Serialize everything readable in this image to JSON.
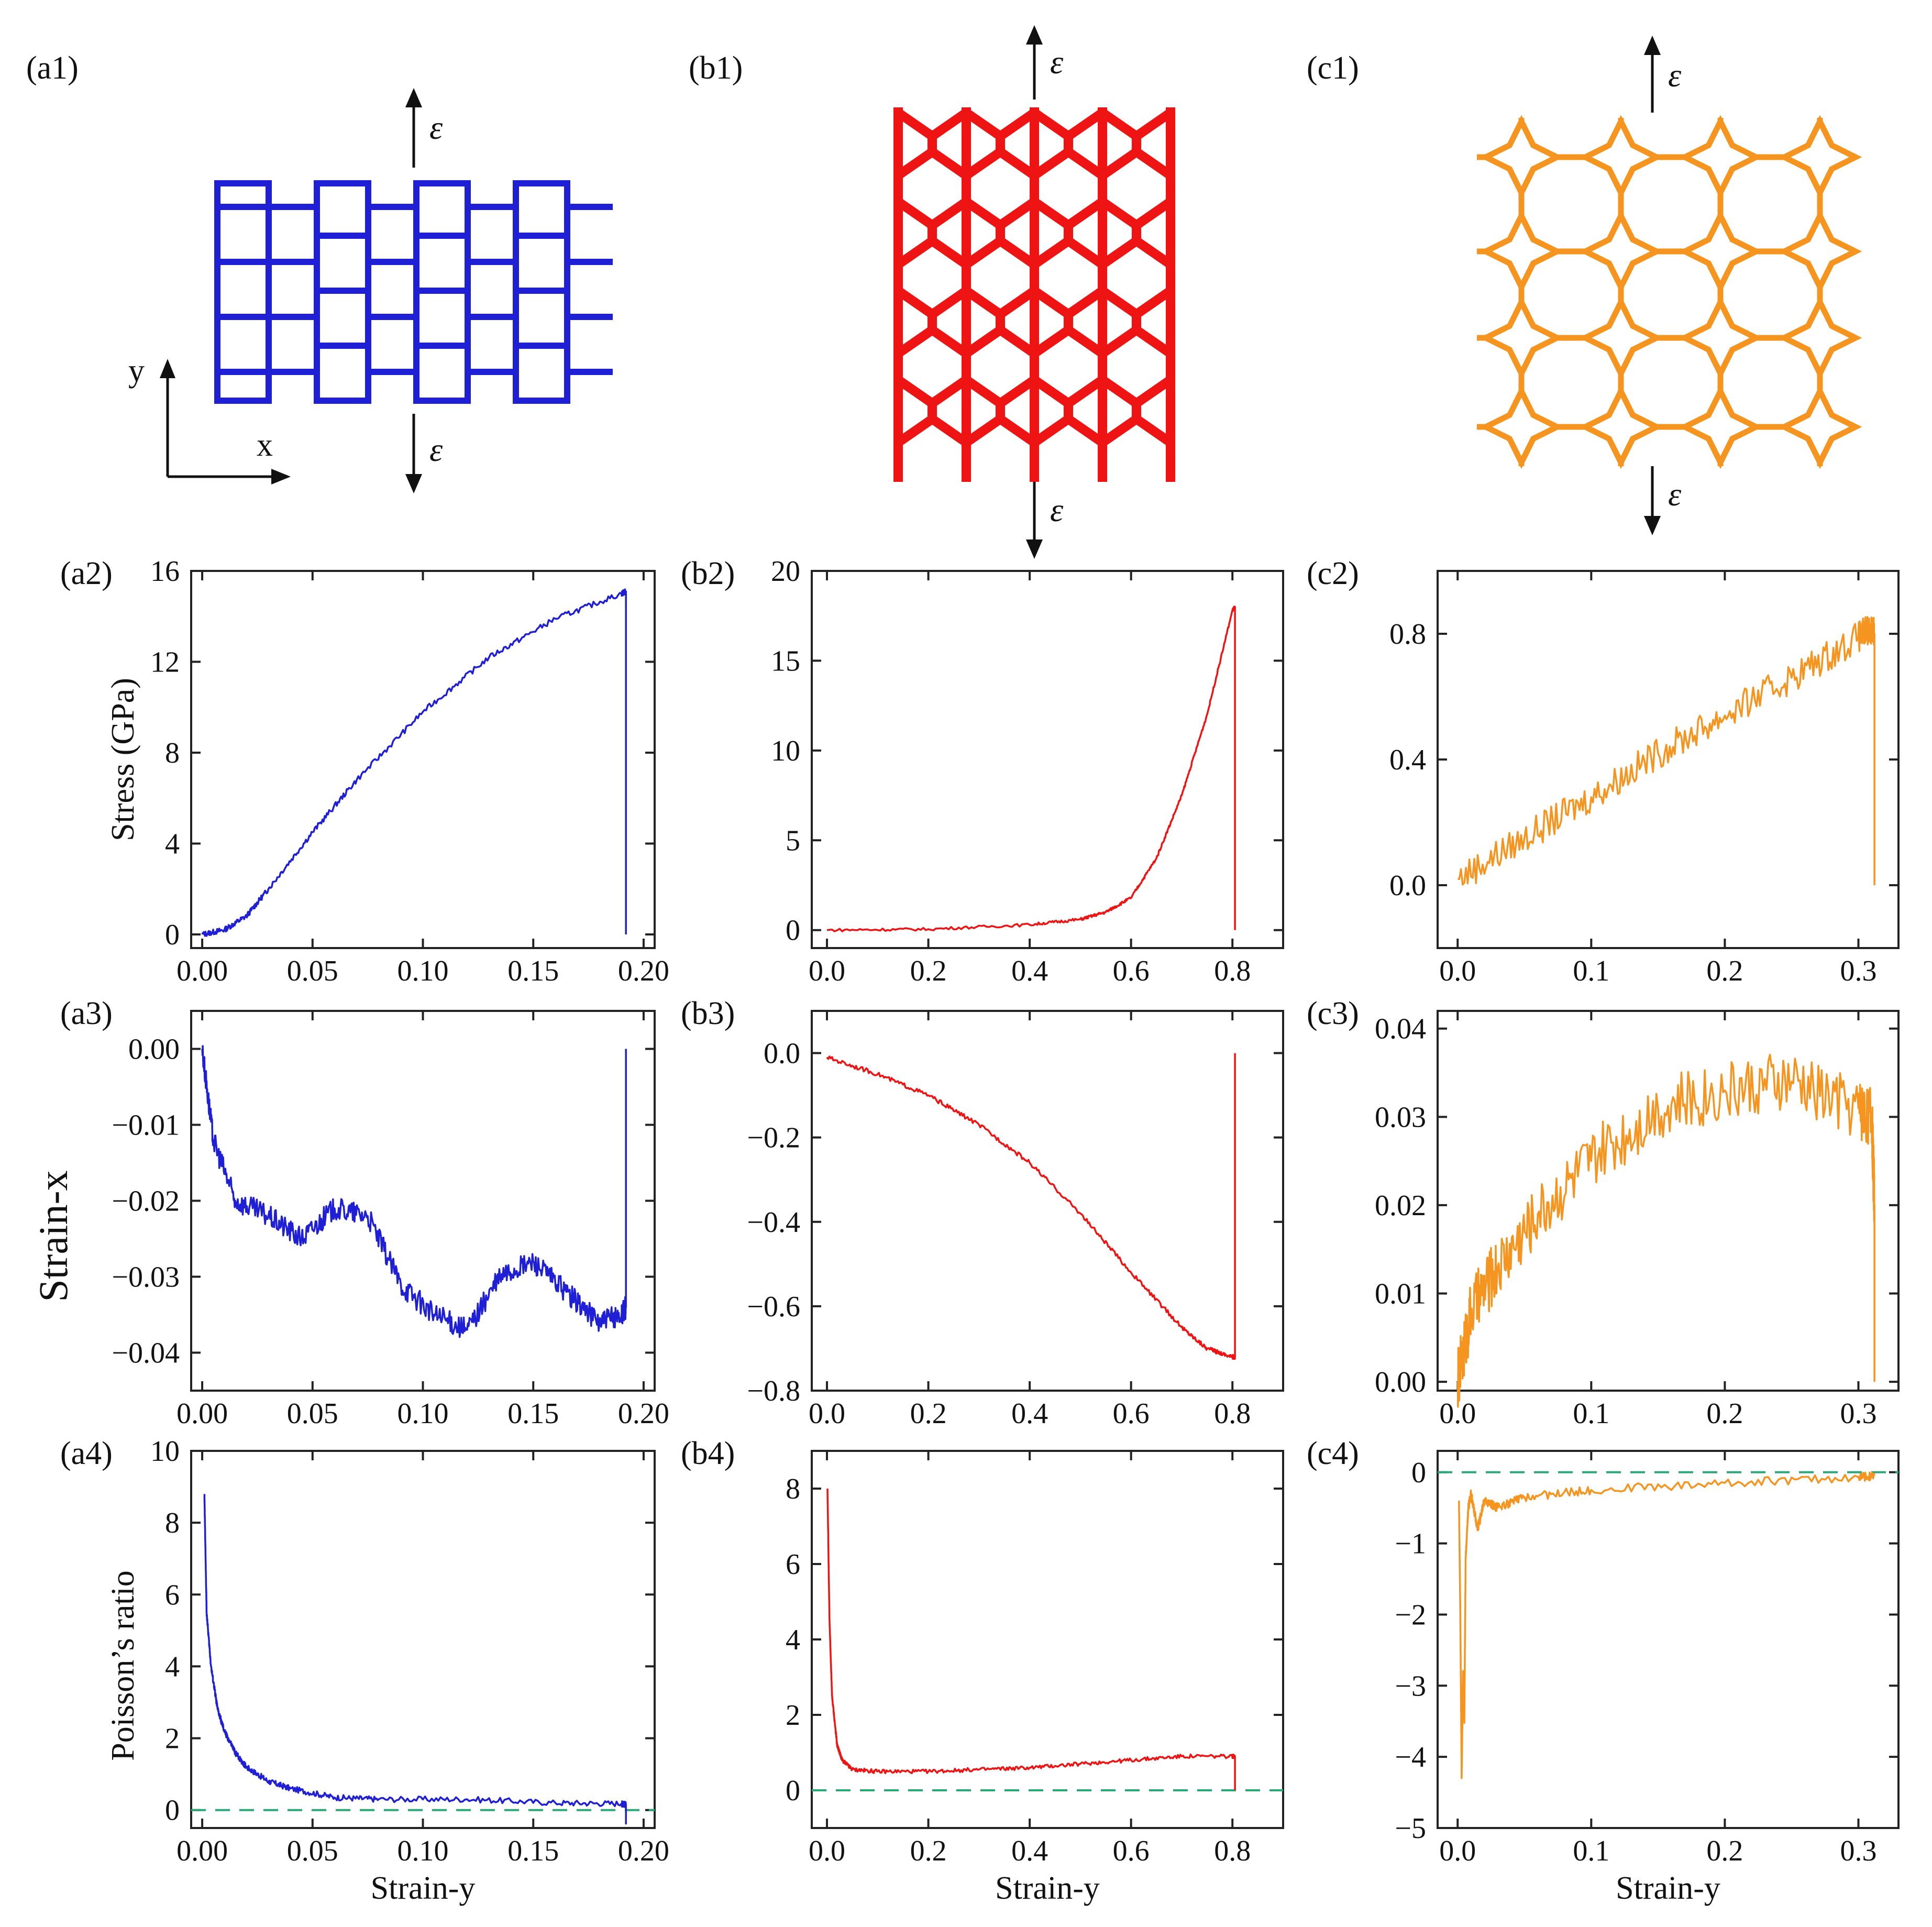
{
  "colors": {
    "a": "#1f1fd6",
    "b": "#ee1414",
    "c": "#f5941e",
    "reference": "#2aa876",
    "axis": "#222222"
  },
  "schematics": [
    {
      "label": "(a1)",
      "structure": "rectangular-lattice",
      "strain_symbol": "ε",
      "axis_x": "x",
      "axis_y": "y"
    },
    {
      "label": "(b1)",
      "structure": "re-entrant-lattice",
      "strain_symbol": "ε"
    },
    {
      "label": "(c1)",
      "structure": "star-lattice",
      "strain_symbol": "ε"
    }
  ],
  "row_titles": {
    "stress": "Stress (GPa)",
    "strain_x": "Strain-x",
    "poisson": "Poisson’s ratio"
  },
  "chart_data": [
    {
      "id": "a2",
      "label": "(a2)",
      "type": "line",
      "series_color": "a",
      "ylabel": "Stress (GPa)",
      "xlabel": "",
      "xlim": [
        -0.005,
        0.205
      ],
      "ylim": [
        -0.6,
        16
      ],
      "xticks": [
        0,
        0.05,
        0.1,
        0.15,
        0.2
      ],
      "xtick_labels": [
        "0.00",
        "0.05",
        "0.10",
        "0.15",
        "0.20"
      ],
      "yticks": [
        0,
        4,
        8,
        12,
        16
      ],
      "ytick_labels": [
        "0",
        "4",
        "8",
        "12",
        "16"
      ],
      "x": [
        0,
        0.01,
        0.02,
        0.03,
        0.05,
        0.07,
        0.1,
        0.13,
        0.16,
        0.19,
        0.192,
        0.192
      ],
      "y": [
        0,
        0.2,
        0.8,
        2.0,
        4.5,
        6.8,
        9.8,
        12.2,
        13.9,
        15.0,
        15.1,
        0
      ],
      "noise": 0.12
    },
    {
      "id": "b2",
      "label": "(b2)",
      "type": "line",
      "series_color": "b",
      "ylabel": "",
      "xlabel": "",
      "xlim": [
        -0.03,
        0.9
      ],
      "ylim": [
        -1,
        20
      ],
      "xticks": [
        0,
        0.2,
        0.4,
        0.6,
        0.8
      ],
      "xtick_labels": [
        "0.0",
        "0.2",
        "0.4",
        "0.6",
        "0.8"
      ],
      "yticks": [
        0,
        5,
        10,
        15,
        20
      ],
      "ytick_labels": [
        "0",
        "5",
        "10",
        "15",
        "20"
      ],
      "x": [
        0,
        0.2,
        0.4,
        0.5,
        0.55,
        0.6,
        0.65,
        0.7,
        0.75,
        0.8,
        0.805,
        0.805
      ],
      "y": [
        0,
        0.05,
        0.3,
        0.6,
        1.0,
        1.8,
        4.0,
        7.5,
        12.0,
        17.8,
        18.0,
        0
      ],
      "noise": 0.08
    },
    {
      "id": "c2",
      "label": "(c2)",
      "type": "line",
      "series_color": "c",
      "ylabel": "",
      "xlabel": "",
      "xlim": [
        -0.015,
        0.33
      ],
      "ylim": [
        -0.2,
        1.0
      ],
      "xticks": [
        0,
        0.1,
        0.2,
        0.3
      ],
      "xtick_labels": [
        "0.0",
        "0.1",
        "0.2",
        "0.3"
      ],
      "yticks": [
        0,
        0.4,
        0.8
      ],
      "ytick_labels": [
        "0.0",
        "0.4",
        "0.8"
      ],
      "x": [
        0,
        0.05,
        0.1,
        0.15,
        0.2,
        0.25,
        0.3,
        0.31,
        0.312,
        0.312
      ],
      "y": [
        0.02,
        0.15,
        0.28,
        0.42,
        0.54,
        0.66,
        0.79,
        0.82,
        0.8,
        0
      ],
      "noise": 0.05
    },
    {
      "id": "a3",
      "label": "(a3)",
      "type": "line",
      "series_color": "a",
      "ylabel": "Strain-x",
      "xlabel": "",
      "xlim": [
        -0.005,
        0.205
      ],
      "ylim": [
        -0.045,
        0.005
      ],
      "xticks": [
        0,
        0.05,
        0.1,
        0.15,
        0.2
      ],
      "xtick_labels": [
        "0.00",
        "0.05",
        "0.10",
        "0.15",
        "0.20"
      ],
      "yticks": [
        0,
        -0.01,
        -0.02,
        -0.03,
        -0.04
      ],
      "ytick_labels": [
        "0.00",
        "−0.01",
        "−0.02",
        "−0.03",
        "−0.04"
      ],
      "x": [
        0,
        0.005,
        0.015,
        0.03,
        0.045,
        0.06,
        0.075,
        0.09,
        0.105,
        0.12,
        0.135,
        0.15,
        0.165,
        0.18,
        0.19,
        0.192,
        0.192
      ],
      "y": [
        0,
        -0.012,
        -0.02,
        -0.022,
        -0.025,
        -0.021,
        -0.022,
        -0.031,
        -0.035,
        -0.037,
        -0.03,
        -0.028,
        -0.032,
        -0.036,
        -0.035,
        -0.034,
        0
      ],
      "noise": 0.0015
    },
    {
      "id": "b3",
      "label": "(b3)",
      "type": "line",
      "series_color": "b",
      "ylabel": "",
      "xlabel": "",
      "xlim": [
        -0.03,
        0.9
      ],
      "ylim": [
        -0.8,
        0.1
      ],
      "xticks": [
        0,
        0.2,
        0.4,
        0.6,
        0.8
      ],
      "xtick_labels": [
        "0.0",
        "0.2",
        "0.4",
        "0.6",
        "0.8"
      ],
      "yticks": [
        0,
        -0.2,
        -0.4,
        -0.6,
        -0.8
      ],
      "ytick_labels": [
        "0.0",
        "−0.2",
        "−0.4",
        "−0.6",
        "−0.8"
      ],
      "x": [
        0,
        0.1,
        0.2,
        0.3,
        0.4,
        0.5,
        0.6,
        0.7,
        0.75,
        0.8,
        0.805,
        0.805
      ],
      "y": [
        -0.01,
        -0.05,
        -0.1,
        -0.17,
        -0.26,
        -0.38,
        -0.52,
        -0.65,
        -0.7,
        -0.72,
        -0.72,
        0
      ],
      "noise": 0.005
    },
    {
      "id": "c3",
      "label": "(c3)",
      "type": "line",
      "series_color": "c",
      "ylabel": "",
      "xlabel": "",
      "xlim": [
        -0.015,
        0.33
      ],
      "ylim": [
        -0.001,
        0.042
      ],
      "xticks": [
        0,
        0.1,
        0.2,
        0.3
      ],
      "xtick_labels": [
        "0.0",
        "0.1",
        "0.2",
        "0.3"
      ],
      "yticks": [
        0,
        0.01,
        0.02,
        0.03,
        0.04
      ],
      "ytick_labels": [
        "0.00",
        "0.01",
        "0.02",
        "0.03",
        "0.04"
      ],
      "x": [
        0,
        0.01,
        0.03,
        0.06,
        0.1,
        0.15,
        0.2,
        0.25,
        0.3,
        0.31,
        0.312,
        0.312
      ],
      "y": [
        0,
        0.008,
        0.013,
        0.019,
        0.025,
        0.031,
        0.033,
        0.034,
        0.031,
        0.03,
        0.02,
        0
      ],
      "noise": 0.0035
    },
    {
      "id": "a4",
      "label": "(a4)",
      "type": "line",
      "series_color": "a",
      "ylabel": "Poisson’s ratio",
      "xlabel": "Strain-y",
      "xlim": [
        -0.005,
        0.205
      ],
      "ylim": [
        -0.5,
        10
      ],
      "xticks": [
        0,
        0.05,
        0.1,
        0.15,
        0.2
      ],
      "xtick_labels": [
        "0.00",
        "0.05",
        "0.10",
        "0.15",
        "0.20"
      ],
      "yticks": [
        0,
        2,
        4,
        6,
        8,
        10
      ],
      "ytick_labels": [
        "0",
        "2",
        "4",
        "6",
        "8",
        "10"
      ],
      "x": [
        0.001,
        0.002,
        0.004,
        0.007,
        0.01,
        0.015,
        0.02,
        0.03,
        0.04,
        0.06,
        0.08,
        0.12,
        0.16,
        0.19,
        0.192,
        0.192
      ],
      "y": [
        8.8,
        5.5,
        4.0,
        2.8,
        2.2,
        1.6,
        1.2,
        0.8,
        0.6,
        0.35,
        0.3,
        0.3,
        0.2,
        0.18,
        0.15,
        -0.4
      ],
      "noise": 0.08,
      "reference_line": 0
    },
    {
      "id": "b4",
      "label": "(b4)",
      "type": "line",
      "series_color": "b",
      "ylabel": "",
      "xlabel": "Strain-y",
      "xlim": [
        -0.03,
        0.9
      ],
      "ylim": [
        -1,
        9
      ],
      "xticks": [
        0,
        0.2,
        0.4,
        0.6,
        0.8
      ],
      "xtick_labels": [
        "0.0",
        "0.2",
        "0.4",
        "0.6",
        "0.8"
      ],
      "yticks": [
        0,
        2,
        4,
        6,
        8
      ],
      "ytick_labels": [
        "0",
        "2",
        "4",
        "6",
        "8"
      ],
      "x": [
        0.001,
        0.005,
        0.01,
        0.02,
        0.03,
        0.05,
        0.1,
        0.2,
        0.3,
        0.4,
        0.5,
        0.6,
        0.7,
        0.8,
        0.805,
        0.805
      ],
      "y": [
        8.0,
        4.5,
        2.5,
        1.2,
        0.8,
        0.55,
        0.5,
        0.5,
        0.55,
        0.6,
        0.7,
        0.8,
        0.9,
        0.9,
        0.9,
        0
      ],
      "noise": 0.05,
      "reference_line": 0
    },
    {
      "id": "c4",
      "label": "(c4)",
      "type": "line",
      "series_color": "c",
      "ylabel": "",
      "xlabel": "Strain-y",
      "xlim": [
        -0.015,
        0.33
      ],
      "ylim": [
        -5,
        0.3
      ],
      "xticks": [
        0,
        0.1,
        0.2,
        0.3
      ],
      "xtick_labels": [
        "0.0",
        "0.1",
        "0.2",
        "0.3"
      ],
      "yticks": [
        0,
        -1,
        -2,
        -3,
        -4,
        -5
      ],
      "ytick_labels": [
        "0",
        "−1",
        "−2",
        "−3",
        "−4",
        "−5"
      ],
      "x": [
        0.001,
        0.002,
        0.003,
        0.004,
        0.005,
        0.006,
        0.008,
        0.01,
        0.015,
        0.02,
        0.03,
        0.05,
        0.1,
        0.2,
        0.3,
        0.312
      ],
      "y": [
        -0.4,
        -2.0,
        -4.3,
        -2.8,
        -3.5,
        -1.2,
        -0.5,
        -0.3,
        -0.8,
        -0.4,
        -0.5,
        -0.35,
        -0.25,
        -0.15,
        -0.07,
        -0.05
      ],
      "noise": 0.06,
      "reference_line": 0
    }
  ]
}
